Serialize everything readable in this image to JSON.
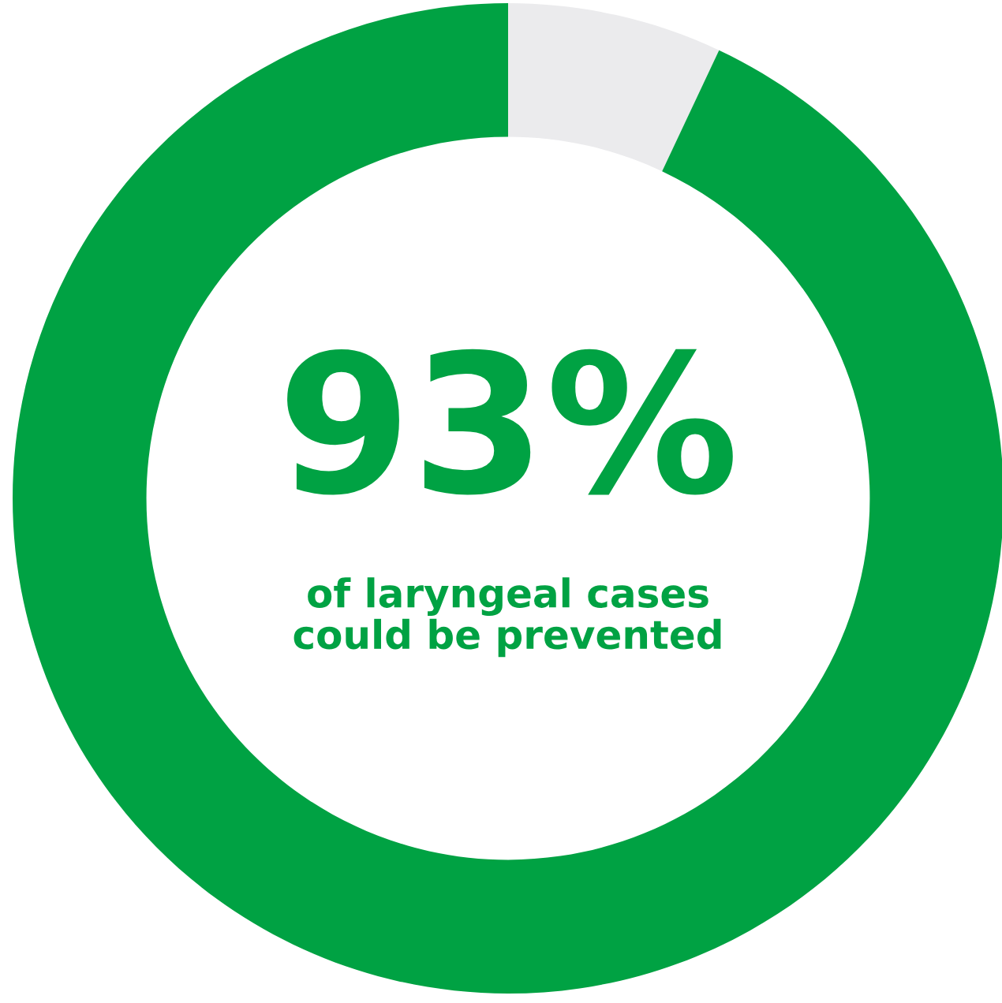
{
  "chart_data": {
    "type": "donut",
    "categories": [
      null,
      null
    ],
    "values": [
      7,
      93
    ],
    "colors": [
      "#ebebed",
      "#00a243"
    ],
    "value_labels": [
      null,
      "93%"
    ],
    "annotations": [
      "of laryngeal cases\ncould be prevented"
    ]
  }
}
